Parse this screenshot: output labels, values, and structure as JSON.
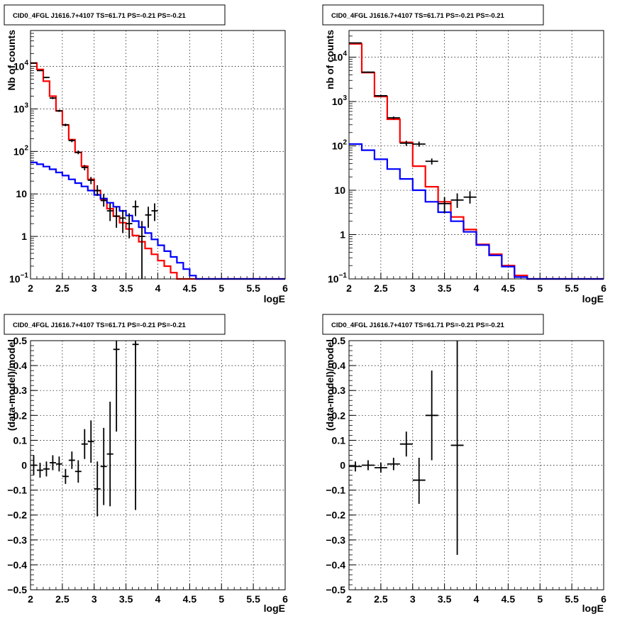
{
  "chart_data": [
    {
      "type": "line",
      "title": "CID0_4FGL J1616.7+4107 TS=61.71 PS=-0.21 PS=-0.21",
      "xlabel": "logE",
      "ylabel": "Nb of counts",
      "xlim": [
        2,
        6
      ],
      "ylim": [
        0.1,
        70000
      ],
      "log_y": true,
      "grid": true,
      "x_ticks": [
        "2",
        "2.5",
        "3",
        "3.5",
        "4",
        "4.5",
        "5",
        "5.5",
        "6"
      ],
      "y_ticks": [
        {
          "value": 0.1,
          "label": "10",
          "exp": "−1"
        },
        {
          "value": 1,
          "label": "1",
          "exp": ""
        },
        {
          "value": 10,
          "label": "10",
          "exp": ""
        },
        {
          "value": 100,
          "label": "10",
          "exp": "2"
        },
        {
          "value": 1000,
          "label": "10",
          "exp": "3"
        },
        {
          "value": 10000,
          "label": "10",
          "exp": "4"
        }
      ],
      "bin_edges": [
        2.0,
        2.1,
        2.2,
        2.3,
        2.4,
        2.5,
        2.6,
        2.7,
        2.8,
        2.9,
        3.0,
        3.1,
        3.2,
        3.3,
        3.4,
        3.5,
        3.6,
        3.7,
        3.8,
        3.9,
        4.0,
        4.1,
        4.2,
        4.3,
        4.4,
        4.5,
        4.6,
        4.7,
        4.8,
        4.9,
        5.0,
        5.1,
        5.2,
        5.3,
        5.4,
        5.5,
        5.6,
        5.7,
        5.8,
        5.9,
        6.0
      ],
      "series": [
        {
          "color": "#ff0000",
          "kind": "step",
          "values": [
            12000,
            8500,
            4500,
            2000,
            900,
            420,
            190,
            95,
            45,
            22,
            12,
            7.5,
            4.5,
            3.0,
            2.1,
            1.5,
            1.05,
            0.75,
            0.52,
            0.38,
            0.27,
            0.2,
            0.14,
            0.1,
            0.1,
            0.1,
            0.1,
            0.1,
            0.1,
            0.1,
            0.1,
            0.1,
            0.1,
            0.1,
            0.1,
            0.1,
            0.1,
            0.1,
            0.1,
            0.1
          ]
        },
        {
          "color": "#0000ff",
          "kind": "step",
          "values": [
            55,
            50,
            44,
            38,
            32,
            27,
            22,
            18,
            15,
            12,
            9.5,
            7.8,
            6.2,
            5.0,
            4.0,
            3.1,
            2.3,
            1.65,
            1.2,
            0.85,
            0.62,
            0.45,
            0.33,
            0.24,
            0.17,
            0.12,
            0.1,
            0.1,
            0.1,
            0.1,
            0.1,
            0.1,
            0.1,
            0.1,
            0.1,
            0.1,
            0.1,
            0.1,
            0.1,
            0.1
          ]
        },
        {
          "color": "#000000",
          "kind": "errorbar",
          "points": [
            {
              "x": 2.05,
              "y": 12000,
              "lo": 11800,
              "hi": 12200,
              "xe": 0.05
            },
            {
              "x": 2.15,
              "y": 8000,
              "lo": 7800,
              "hi": 8200,
              "xe": 0.05
            },
            {
              "x": 2.25,
              "y": 5500,
              "lo": 5300,
              "hi": 5700,
              "xe": 0.05
            },
            {
              "x": 2.35,
              "y": 1800,
              "lo": 1700,
              "hi": 1900,
              "xe": 0.05
            },
            {
              "x": 2.45,
              "y": 900,
              "lo": 850,
              "hi": 950,
              "xe": 0.05
            },
            {
              "x": 2.55,
              "y": 420,
              "lo": 390,
              "hi": 450,
              "xe": 0.05
            },
            {
              "x": 2.65,
              "y": 180,
              "lo": 165,
              "hi": 195,
              "xe": 0.05
            },
            {
              "x": 2.75,
              "y": 95,
              "lo": 86,
              "hi": 105,
              "xe": 0.05
            },
            {
              "x": 2.85,
              "y": 42,
              "lo": 36,
              "hi": 48,
              "xe": 0.05
            },
            {
              "x": 2.95,
              "y": 21,
              "lo": 17,
              "hi": 25,
              "xe": 0.05
            },
            {
              "x": 3.05,
              "y": 12,
              "lo": 9,
              "hi": 16,
              "xe": 0.05
            },
            {
              "x": 3.15,
              "y": 7,
              "lo": 5,
              "hi": 10,
              "xe": 0.05
            },
            {
              "x": 3.25,
              "y": 4,
              "lo": 2.3,
              "hi": 6,
              "xe": 0.05
            },
            {
              "x": 3.35,
              "y": 3,
              "lo": 1.6,
              "hi": 5,
              "xe": 0.05
            },
            {
              "x": 3.45,
              "y": 2.7,
              "lo": 1.2,
              "hi": 4.2,
              "xe": 0.05
            },
            {
              "x": 3.55,
              "y": 2.0,
              "lo": 0.9,
              "hi": 3.5,
              "xe": 0.05
            },
            {
              "x": 3.65,
              "y": 5.0,
              "lo": 3,
              "hi": 7,
              "xe": 0.05
            },
            {
              "x": 3.75,
              "y": 1.0,
              "lo": 0.1,
              "hi": 2.3,
              "xe": 0.05
            },
            {
              "x": 3.85,
              "y": 3.2,
              "lo": 1.6,
              "hi": 5,
              "xe": 0.05
            },
            {
              "x": 3.95,
              "y": 4.0,
              "lo": 2.3,
              "hi": 6,
              "xe": 0.05
            }
          ]
        }
      ]
    },
    {
      "type": "line",
      "title": "CID0_4FGL J1616.7+4107 TS=61.71 PS=-0.21 PS=-0.21",
      "xlabel": "logE",
      "ylabel": "nb of counts",
      "xlim": [
        2,
        6
      ],
      "ylim": [
        0.1,
        40000
      ],
      "log_y": true,
      "grid": true,
      "x_ticks": [
        "2",
        "2.5",
        "3",
        "3.5",
        "4",
        "4.5",
        "5",
        "5.5",
        "6"
      ],
      "y_ticks": [
        {
          "value": 0.1,
          "label": "10",
          "exp": "−1"
        },
        {
          "value": 1,
          "label": "1",
          "exp": ""
        },
        {
          "value": 10,
          "label": "10",
          "exp": ""
        },
        {
          "value": 100,
          "label": "10",
          "exp": "2"
        },
        {
          "value": 1000,
          "label": "10",
          "exp": "3"
        },
        {
          "value": 10000,
          "label": "10",
          "exp": "4"
        }
      ],
      "bin_edges": [
        2.0,
        2.2,
        2.4,
        2.6,
        2.8,
        3.0,
        3.2,
        3.4,
        3.6,
        3.8,
        4.0,
        4.2,
        4.4,
        4.6,
        4.8,
        5.0,
        5.2,
        5.4,
        5.6,
        5.8,
        6.0
      ],
      "series": [
        {
          "color": "#ff0000",
          "kind": "step",
          "values": [
            20000,
            4500,
            1300,
            400,
            120,
            35,
            12,
            5.5,
            2.5,
            1.3,
            0.6,
            0.36,
            0.2,
            0.12,
            0.1,
            0.1,
            0.1,
            0.1,
            0.1,
            0.1
          ]
        },
        {
          "color": "#0000ff",
          "kind": "step",
          "values": [
            110,
            80,
            50,
            30,
            18,
            10,
            5.5,
            3.2,
            2.0,
            1.15,
            0.58,
            0.34,
            0.19,
            0.11,
            0.1,
            0.1,
            0.1,
            0.1,
            0.1,
            0.1
          ]
        },
        {
          "color": "#000000",
          "kind": "errorbar",
          "points": [
            {
              "x": 2.1,
              "y": 21000,
              "lo": 20700,
              "hi": 21300,
              "xe": 0.1
            },
            {
              "x": 2.3,
              "y": 4600,
              "lo": 4450,
              "hi": 4750,
              "xe": 0.1
            },
            {
              "x": 2.5,
              "y": 1350,
              "lo": 1280,
              "hi": 1420,
              "xe": 0.1
            },
            {
              "x": 2.7,
              "y": 430,
              "lo": 400,
              "hi": 460,
              "xe": 0.1
            },
            {
              "x": 2.9,
              "y": 115,
              "lo": 100,
              "hi": 130,
              "xe": 0.1
            },
            {
              "x": 3.1,
              "y": 110,
              "lo": 96,
              "hi": 125,
              "xe": 0.1
            },
            {
              "x": 3.3,
              "y": 45,
              "lo": 38,
              "hi": 52,
              "xe": 0.1
            },
            {
              "x": 3.5,
              "y": 5.0,
              "lo": 3,
              "hi": 7,
              "xe": 0.1
            },
            {
              "x": 3.7,
              "y": 6.0,
              "lo": 4,
              "hi": 8.5,
              "xe": 0.1
            },
            {
              "x": 3.9,
              "y": 7.0,
              "lo": 5,
              "hi": 9.5,
              "xe": 0.1
            }
          ]
        }
      ]
    },
    {
      "type": "scatter",
      "title": "CID0_4FGL J1616.7+4107 TS=61.71 PS=-0.21 PS=-0.21",
      "xlabel": "logE",
      "ylabel": "(data-model)/model",
      "xlim": [
        2,
        6
      ],
      "ylim": [
        -0.5,
        0.5
      ],
      "log_y": false,
      "grid": true,
      "x_ticks": [
        "2",
        "2.5",
        "3",
        "3.5",
        "4",
        "4.5",
        "5",
        "5.5",
        "6"
      ],
      "y_ticks": [
        {
          "value": -0.5,
          "label": "−0.5"
        },
        {
          "value": -0.4,
          "label": "−0.4"
        },
        {
          "value": -0.3,
          "label": "−0.3"
        },
        {
          "value": -0.2,
          "label": "−0.2"
        },
        {
          "value": -0.1,
          "label": "−0.1"
        },
        {
          "value": 0,
          "label": "0"
        },
        {
          "value": 0.1,
          "label": "0.1"
        },
        {
          "value": 0.2,
          "label": "0.2"
        },
        {
          "value": 0.3,
          "label": "0.3"
        },
        {
          "value": 0.4,
          "label": "0.4"
        },
        {
          "value": 0.5,
          "label": "0.5"
        }
      ],
      "series": [
        {
          "color": "#000000",
          "kind": "errorbar",
          "points": [
            {
              "x": 2.05,
              "y": 0.0,
              "lo": -0.04,
              "hi": 0.04,
              "xe": 0.05
            },
            {
              "x": 2.15,
              "y": -0.02,
              "lo": -0.05,
              "hi": 0.01,
              "xe": 0.05
            },
            {
              "x": 2.25,
              "y": -0.015,
              "lo": -0.045,
              "hi": 0.015,
              "xe": 0.05
            },
            {
              "x": 2.35,
              "y": 0.01,
              "lo": -0.02,
              "hi": 0.04,
              "xe": 0.05
            },
            {
              "x": 2.45,
              "y": 0.005,
              "lo": -0.025,
              "hi": 0.035,
              "xe": 0.05
            },
            {
              "x": 2.55,
              "y": -0.045,
              "lo": -0.075,
              "hi": -0.015,
              "xe": 0.05
            },
            {
              "x": 2.65,
              "y": 0.02,
              "lo": -0.015,
              "hi": 0.055,
              "xe": 0.05
            },
            {
              "x": 2.75,
              "y": -0.025,
              "lo": -0.07,
              "hi": 0.02,
              "xe": 0.05
            },
            {
              "x": 2.85,
              "y": 0.085,
              "lo": 0.025,
              "hi": 0.145,
              "xe": 0.05
            },
            {
              "x": 2.95,
              "y": 0.095,
              "lo": 0.01,
              "hi": 0.18,
              "xe": 0.05
            },
            {
              "x": 3.05,
              "y": -0.095,
              "lo": -0.205,
              "hi": 0.015,
              "xe": 0.05
            },
            {
              "x": 3.15,
              "y": -0.005,
              "lo": -0.16,
              "hi": 0.15,
              "xe": 0.05
            },
            {
              "x": 3.25,
              "y": 0.045,
              "lo": -0.165,
              "hi": 0.255,
              "xe": 0.05
            },
            {
              "x": 3.35,
              "y": 0.465,
              "lo": 0.135,
              "hi": 0.5,
              "xe": 0.05
            },
            {
              "x": 3.65,
              "y": 0.485,
              "lo": -0.18,
              "hi": 0.5,
              "xe": 0.05
            }
          ]
        }
      ]
    },
    {
      "type": "scatter",
      "title": "CID0_4FGL J1616.7+4107 TS=61.71 PS=-0.21 PS=-0.21",
      "xlabel": "logE",
      "ylabel": "(data-model)/model",
      "xlim": [
        2,
        6
      ],
      "ylim": [
        -0.5,
        0.5
      ],
      "log_y": false,
      "grid": true,
      "x_ticks": [
        "2",
        "2.5",
        "3",
        "3.5",
        "4",
        "4.5",
        "5",
        "5.5",
        "6"
      ],
      "y_ticks": [
        {
          "value": -0.5,
          "label": "−0.5"
        },
        {
          "value": -0.4,
          "label": "−0.4"
        },
        {
          "value": -0.3,
          "label": "−0.3"
        },
        {
          "value": -0.2,
          "label": "−0.2"
        },
        {
          "value": -0.1,
          "label": "−0.1"
        },
        {
          "value": 0,
          "label": "0"
        },
        {
          "value": 0.1,
          "label": "0.1"
        },
        {
          "value": 0.2,
          "label": "0.2"
        },
        {
          "value": 0.3,
          "label": "0.3"
        },
        {
          "value": 0.4,
          "label": "0.4"
        },
        {
          "value": 0.5,
          "label": "0.5"
        }
      ],
      "series": [
        {
          "color": "#000000",
          "kind": "errorbar",
          "points": [
            {
              "x": 2.1,
              "y": -0.005,
              "lo": -0.025,
              "hi": 0.015,
              "xe": 0.1
            },
            {
              "x": 2.3,
              "y": 0.0,
              "lo": -0.02,
              "hi": 0.02,
              "xe": 0.1
            },
            {
              "x": 2.5,
              "y": -0.01,
              "lo": -0.03,
              "hi": 0.01,
              "xe": 0.1
            },
            {
              "x": 2.7,
              "y": 0.005,
              "lo": -0.02,
              "hi": 0.03,
              "xe": 0.1
            },
            {
              "x": 2.9,
              "y": 0.085,
              "lo": 0.035,
              "hi": 0.135,
              "xe": 0.1
            },
            {
              "x": 3.1,
              "y": -0.06,
              "lo": -0.155,
              "hi": 0.03,
              "xe": 0.1
            },
            {
              "x": 3.3,
              "y": 0.2,
              "lo": 0.02,
              "hi": 0.38,
              "xe": 0.1
            },
            {
              "x": 3.7,
              "y": 0.08,
              "lo": -0.36,
              "hi": 0.5,
              "xe": 0.1
            }
          ]
        }
      ]
    }
  ]
}
